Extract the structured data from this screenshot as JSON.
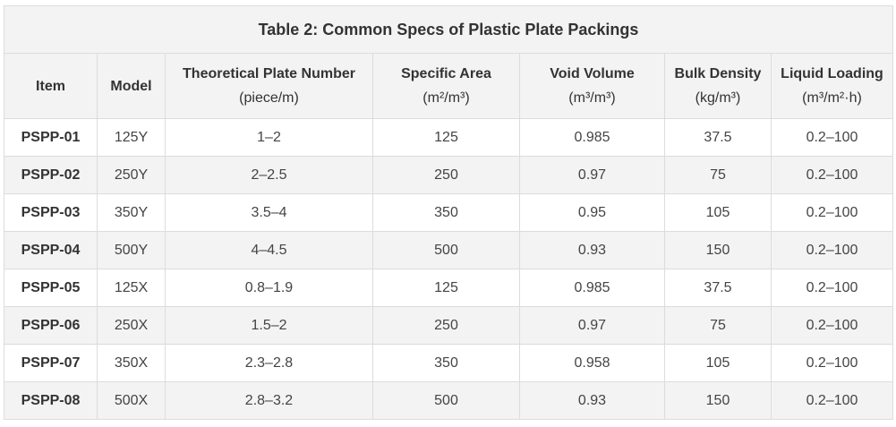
{
  "table": {
    "title": "Table 2: Common Specs of Plastic Plate Packings",
    "headers": [
      {
        "label": "Item",
        "unit": ""
      },
      {
        "label": "Model",
        "unit": ""
      },
      {
        "label": "Theoretical Plate Number",
        "unit": "(piece/m)"
      },
      {
        "label": "Specific Area",
        "unit": "(m²/m³)"
      },
      {
        "label": "Void Volume",
        "unit": "(m³/m³)"
      },
      {
        "label": "Bulk Density",
        "unit": "(kg/m³)"
      },
      {
        "label": "Liquid Loading",
        "unit": "(m³/m²·h)"
      }
    ],
    "rows": [
      [
        "PSPP-01",
        "125Y",
        "1–2",
        "125",
        "0.985",
        "37.5",
        "0.2–100"
      ],
      [
        "PSPP-02",
        "250Y",
        "2–2.5",
        "250",
        "0.97",
        "75",
        "0.2–100"
      ],
      [
        "PSPP-03",
        "350Y",
        "3.5–4",
        "350",
        "0.95",
        "105",
        "0.2–100"
      ],
      [
        "PSPP-04",
        "500Y",
        "4–4.5",
        "500",
        "0.93",
        "150",
        "0.2–100"
      ],
      [
        "PSPP-05",
        "125X",
        "0.8–1.9",
        "125",
        "0.985",
        "37.5",
        "0.2–100"
      ],
      [
        "PSPP-06",
        "250X",
        "1.5–2",
        "250",
        "0.97",
        "75",
        "0.2–100"
      ],
      [
        "PSPP-07",
        "350X",
        "2.3–2.8",
        "350",
        "0.958",
        "105",
        "0.2–100"
      ],
      [
        "PSPP-08",
        "500X",
        "2.8–3.2",
        "500",
        "0.93",
        "150",
        "0.2–100"
      ]
    ]
  }
}
